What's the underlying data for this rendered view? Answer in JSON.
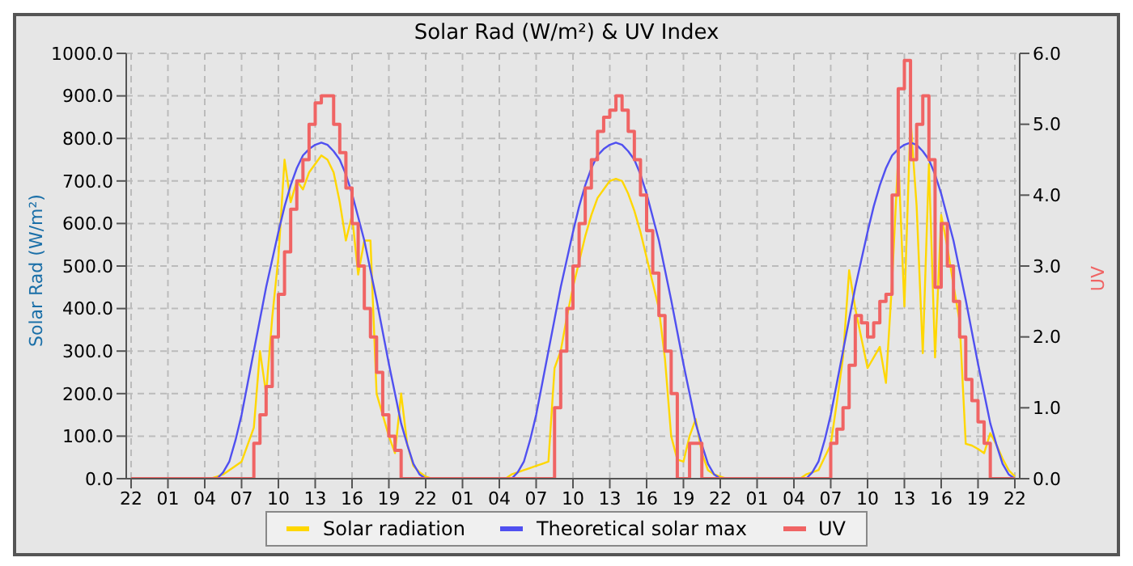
{
  "chart_data": {
    "type": "line",
    "title": "Solar Rad (W/m²) &  UV Index",
    "ylabel": "Solar Rad (W/m²)",
    "y2label": "UV",
    "categories": [
      "22",
      null,
      null,
      null,
      null,
      null,
      "01",
      null,
      null,
      null,
      null,
      null,
      "04",
      null,
      null,
      null,
      null,
      null,
      "07",
      null,
      null,
      null,
      null,
      null,
      "10",
      null,
      null,
      null,
      null,
      null,
      "13",
      null,
      null,
      null,
      null,
      null,
      "16",
      null,
      null,
      null,
      null,
      null,
      "19",
      null,
      null,
      null,
      null,
      null,
      "22",
      null,
      null,
      null,
      null,
      null,
      "01",
      null,
      null,
      null,
      null,
      null,
      "04",
      null,
      null,
      null,
      null,
      null,
      "07",
      null,
      null,
      null,
      null,
      null,
      "10",
      null,
      null,
      null,
      null,
      null,
      "13",
      null,
      null,
      null,
      null,
      null,
      "16",
      null,
      null,
      null,
      null,
      null,
      "19",
      null,
      null,
      null,
      null,
      null,
      "22",
      null,
      null,
      null,
      null,
      null,
      "01",
      null,
      null,
      null,
      null,
      null,
      "04",
      null,
      null,
      null,
      null,
      null,
      "07",
      null,
      null,
      null,
      null,
      null,
      "10",
      null,
      null,
      null,
      null,
      null,
      "13",
      null,
      null,
      null,
      null,
      null,
      "16",
      null,
      null,
      null,
      null,
      null,
      "19",
      null,
      null,
      null,
      null,
      null,
      "22"
    ],
    "ylim": [
      0,
      1000
    ],
    "yticks": [
      {
        "value": 0,
        "label": "0.0"
      },
      {
        "value": 100,
        "label": "100.0"
      },
      {
        "value": 200,
        "label": "200.0"
      },
      {
        "value": 300,
        "label": "300.0"
      },
      {
        "value": 400,
        "label": "400.0"
      },
      {
        "value": 500,
        "label": "500.0"
      },
      {
        "value": 600,
        "label": "600.0"
      },
      {
        "value": 700,
        "label": "700.0"
      },
      {
        "value": 800,
        "label": "800.0"
      },
      {
        "value": 900,
        "label": "900.0"
      },
      {
        "value": 1000,
        "label": "1000.0"
      }
    ],
    "y2lim": [
      0,
      6
    ],
    "y2ticks": [
      {
        "value": 0,
        "label": "0.0"
      },
      {
        "value": 1,
        "label": "1.0"
      },
      {
        "value": 2,
        "label": "2.0"
      },
      {
        "value": 3,
        "label": "3.0"
      },
      {
        "value": 4,
        "label": "4.0"
      },
      {
        "value": 5,
        "label": "5.0"
      },
      {
        "value": 6,
        "label": "6.0"
      }
    ],
    "grid": true,
    "legend": "bottom",
    "line_style": "solid",
    "marker": "none",
    "series": [
      {
        "name": "Solar radiation",
        "color": "#ffd700",
        "values": [
          null,
          null,
          null,
          null,
          null,
          null,
          null,
          null,
          null,
          null,
          null,
          null,
          0,
          0,
          5,
          10,
          20,
          30,
          40,
          80,
          120,
          300,
          200,
          380,
          520,
          750,
          650,
          700,
          680,
          720,
          740,
          760,
          750,
          720,
          650,
          560,
          620,
          480,
          560,
          560,
          200,
          150,
          100,
          60,
          200,
          80,
          30,
          15,
          5,
          0,
          0,
          0,
          0,
          0,
          0,
          0,
          0,
          0,
          0,
          0,
          0,
          0,
          10,
          15,
          20,
          25,
          30,
          35,
          40,
          260,
          300,
          380,
          450,
          510,
          570,
          620,
          660,
          680,
          700,
          705,
          700,
          670,
          630,
          580,
          520,
          460,
          400,
          280,
          100,
          45,
          40,
          100,
          140,
          60,
          20,
          10,
          5,
          0,
          0,
          0,
          0,
          0,
          0,
          0,
          0,
          0,
          0,
          0,
          0,
          0,
          10,
          15,
          20,
          50,
          80,
          180,
          285,
          490,
          400,
          330,
          260,
          285,
          310,
          225,
          465,
          760,
          405,
          845,
          640,
          295,
          740,
          285,
          620,
          545,
          455,
          370,
          82,
          78,
          70,
          60,
          107,
          80,
          47,
          20,
          5
        ]
      },
      {
        "name": "Theoretical solar max",
        "color": "#5050f0",
        "values": [
          null,
          null,
          null,
          null,
          null,
          null,
          null,
          null,
          null,
          null,
          null,
          null,
          0,
          0,
          0,
          15,
          40,
          90,
          150,
          225,
          300,
          375,
          450,
          515,
          580,
          640,
          690,
          730,
          760,
          775,
          785,
          790,
          785,
          770,
          750,
          715,
          670,
          615,
          560,
          490,
          420,
          345,
          270,
          200,
          130,
          80,
          35,
          10,
          0,
          0,
          0,
          0,
          0,
          0,
          0,
          0,
          0,
          0,
          0,
          0,
          0,
          0,
          0,
          15,
          40,
          90,
          150,
          225,
          300,
          375,
          450,
          515,
          580,
          640,
          690,
          730,
          760,
          775,
          785,
          790,
          785,
          770,
          750,
          715,
          670,
          615,
          560,
          490,
          420,
          345,
          270,
          200,
          130,
          80,
          35,
          10,
          0,
          0,
          0,
          0,
          0,
          0,
          0,
          0,
          0,
          0,
          0,
          0,
          0,
          0,
          0,
          15,
          40,
          90,
          150,
          225,
          300,
          375,
          450,
          515,
          580,
          640,
          690,
          730,
          760,
          775,
          785,
          790,
          785,
          770,
          750,
          715,
          670,
          615,
          560,
          490,
          420,
          345,
          270,
          200,
          130,
          80,
          35,
          10,
          0
        ]
      },
      {
        "name": "UV",
        "color": "#f06464",
        "type": "step",
        "axis": "y2",
        "values": [
          0,
          0,
          0,
          0,
          0,
          0,
          0,
          0,
          0,
          0,
          0,
          0,
          0,
          0,
          0,
          0,
          0,
          0,
          0,
          0,
          0.5,
          0.9,
          1.3,
          2.0,
          2.6,
          3.2,
          3.8,
          4.2,
          4.5,
          5.0,
          5.3,
          5.4,
          5.4,
          5.0,
          4.6,
          4.1,
          3.6,
          3.0,
          2.4,
          2.0,
          1.5,
          0.9,
          0.6,
          0.4,
          0,
          0,
          0,
          0,
          0,
          0,
          0,
          0,
          0,
          0,
          0,
          0,
          0,
          0,
          0,
          0,
          0,
          0,
          0,
          0,
          0,
          0,
          0,
          0,
          0,
          1.0,
          1.8,
          2.4,
          3.0,
          3.6,
          4.1,
          4.5,
          4.9,
          5.1,
          5.2,
          5.4,
          5.2,
          4.9,
          4.5,
          4.0,
          3.5,
          2.9,
          2.3,
          1.8,
          1.2,
          0,
          0,
          0.5,
          0.5,
          0,
          0,
          0,
          0,
          0,
          0,
          0,
          0,
          0,
          0,
          0,
          0,
          0,
          0,
          0,
          0,
          0,
          0,
          0,
          0,
          0,
          0.5,
          0.7,
          1.0,
          1.6,
          2.3,
          2.2,
          2.0,
          2.2,
          2.5,
          2.6,
          4.0,
          5.5,
          5.9,
          4.5,
          5.0,
          5.4,
          4.5,
          2.7,
          3.6,
          3.0,
          2.5,
          2.0,
          1.4,
          1.1,
          0.8,
          0.5,
          0,
          0,
          0,
          0,
          0
        ]
      }
    ]
  }
}
